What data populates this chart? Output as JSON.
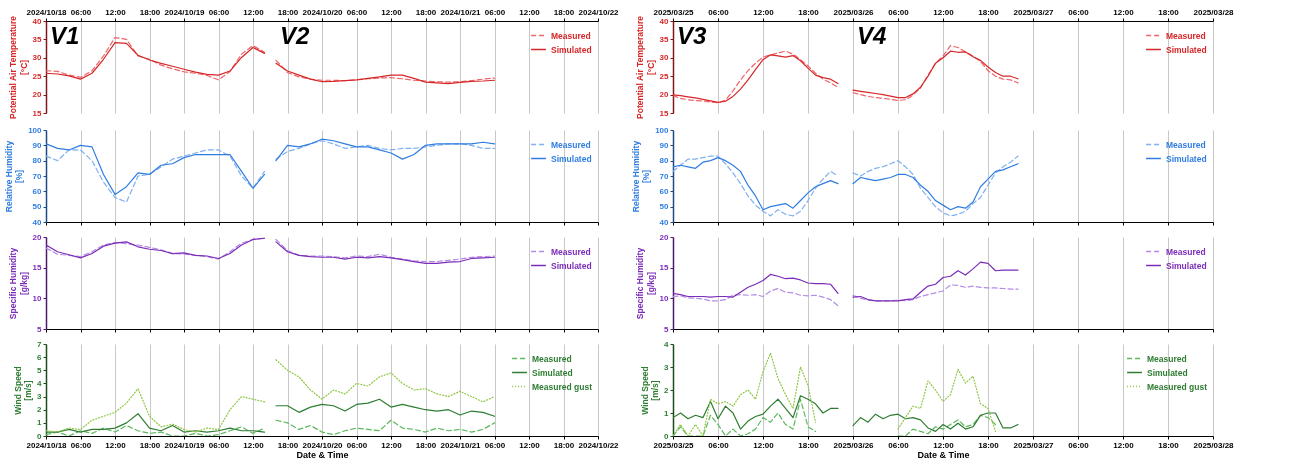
{
  "chart_data": [
    {
      "type": "line",
      "ylabel": "Potential Air Temperature\n[°C]",
      "grid": "x",
      "legend": "top right",
      "xlim": [
        "2024-10-18T00:00",
        "2024-10-22T00:00"
      ],
      "xticks": [
        {
          "value": "2024-10-18T00:00",
          "label": "2024/10/18"
        },
        {
          "value": "2024-10-18T06:00",
          "label": "06:00"
        },
        {
          "value": "2024-10-18T12:00",
          "label": "12:00"
        },
        {
          "value": "2024-10-18T18:00",
          "label": "18:00"
        },
        {
          "value": "2024-10-19T00:00",
          "label": "2024/10/19"
        },
        {
          "value": "2024-10-19T06:00",
          "label": "06:00"
        },
        {
          "value": "2024-10-19T12:00",
          "label": "12:00"
        },
        {
          "value": "2024-10-19T18:00",
          "label": "18:00"
        },
        {
          "value": "2024-10-20T00:00",
          "label": "2024/10/20"
        },
        {
          "value": "2024-10-20T06:00",
          "label": "06:00"
        },
        {
          "value": "2024-10-20T12:00",
          "label": "12:00"
        },
        {
          "value": "2024-10-20T18:00",
          "label": "18:00"
        },
        {
          "value": "2024-10-21T00:00",
          "label": "2024/10/21"
        },
        {
          "value": "2024-10-21T06:00",
          "label": "06:00"
        },
        {
          "value": "2024-10-21T12:00",
          "label": "12:00"
        },
        {
          "value": "2024-10-21T18:00",
          "label": "18:00"
        },
        {
          "value": "2024-10-22T00:00",
          "label": "2024/10/22"
        }
      ],
      "ylim": [
        15,
        40
      ],
      "yticks": [
        15,
        20,
        25,
        30,
        35,
        40
      ],
      "annotations": [
        "V1",
        "V2"
      ],
      "x": [
        "2024-10-18T00:00",
        "2024-10-18T02:00",
        "2024-10-18T04:00",
        "2024-10-18T06:00",
        "2024-10-18T08:00",
        "2024-10-18T10:00",
        "2024-10-18T12:00",
        "2024-10-18T14:00",
        "2024-10-18T16:00",
        "2024-10-18T18:00",
        "2024-10-18T20:00",
        "2024-10-18T22:00",
        "2024-10-19T00:00",
        "2024-10-19T02:00",
        "2024-10-19T04:00",
        "2024-10-19T06:00",
        "2024-10-19T08:00",
        "2024-10-19T10:00",
        "2024-10-19T12:00",
        "2024-10-19T14:00",
        "2024-10-19T15:00",
        "2024-10-19T16:00",
        "2024-10-19T18:00",
        "2024-10-19T20:00",
        "2024-10-19T22:00",
        "2024-10-20T00:00",
        "2024-10-20T02:00",
        "2024-10-20T04:00",
        "2024-10-20T06:00",
        "2024-10-20T08:00",
        "2024-10-20T10:00",
        "2024-10-20T12:00",
        "2024-10-20T14:00",
        "2024-10-20T16:00",
        "2024-10-20T18:00",
        "2024-10-20T20:00",
        "2024-10-20T22:00",
        "2024-10-21T00:00",
        "2024-10-21T02:00",
        "2024-10-21T04:00",
        "2024-10-21T06:00"
      ],
      "series": [
        {
          "name": "Measured",
          "color": "#f0646a",
          "line_style": "dashed",
          "values": [
            26.5,
            26.3,
            25.3,
            24.7,
            26.5,
            30.5,
            35.5,
            35,
            30.5,
            29.6,
            28,
            27,
            26.2,
            25.8,
            25.2,
            24,
            26.3,
            31,
            33.3,
            31.5,
            null,
            29.3,
            26,
            24.8,
            24.2,
            23.9,
            23.9,
            23.8,
            24,
            24.3,
            24.5,
            24.6,
            24.3,
            23.9,
            23.7,
            23.5,
            23.4,
            23.5,
            23.8,
            24.2,
            24.5
          ]
        },
        {
          "name": "Simulated",
          "color": "#d62728",
          "line_style": "solid",
          "values": [
            25.8,
            25.6,
            25.1,
            24.2,
            25.8,
            29.6,
            34.1,
            33.9,
            30.7,
            29.4,
            28.5,
            27.7,
            26.9,
            26.1,
            25.5,
            25.3,
            26.4,
            30.1,
            32.8,
            31.2,
            null,
            28.5,
            26.4,
            25.3,
            24.2,
            23.5,
            23.6,
            23.8,
            24.0,
            24.4,
            24.8,
            25.3,
            25.3,
            24.4,
            23.4,
            23.2,
            23.0,
            23.3,
            23.6,
            23.7,
            23.9
          ]
        }
      ]
    },
    {
      "type": "line",
      "ylabel": "Relative Humidity\n[%]",
      "grid": "x",
      "legend": "top right",
      "tick_labels": "y",
      "xlim": [
        "2024-10-18T00:00",
        "2024-10-22T00:00"
      ],
      "xticks": [
        "2024-10-18T00:00",
        "2024-10-18T06:00",
        "2024-10-18T12:00",
        "2024-10-18T18:00",
        "2024-10-19T00:00",
        "2024-10-19T06:00",
        "2024-10-19T12:00",
        "2024-10-19T18:00",
        "2024-10-20T00:00",
        "2024-10-20T06:00",
        "2024-10-20T12:00",
        "2024-10-20T18:00",
        "2024-10-21T00:00",
        "2024-10-21T06:00",
        "2024-10-21T12:00",
        "2024-10-21T18:00",
        "2024-10-22T00:00"
      ],
      "ylim": [
        40,
        100
      ],
      "yticks": [
        40,
        50,
        60,
        70,
        80,
        90,
        100
      ],
      "x": [
        "2024-10-18T00:00",
        "2024-10-18T02:00",
        "2024-10-18T04:00",
        "2024-10-18T06:00",
        "2024-10-18T08:00",
        "2024-10-18T10:00",
        "2024-10-18T12:00",
        "2024-10-18T14:00",
        "2024-10-18T16:00",
        "2024-10-18T18:00",
        "2024-10-18T20:00",
        "2024-10-18T22:00",
        "2024-10-19T00:00",
        "2024-10-19T02:00",
        "2024-10-19T04:00",
        "2024-10-19T06:00",
        "2024-10-19T08:00",
        "2024-10-19T10:00",
        "2024-10-19T12:00",
        "2024-10-19T14:00",
        "2024-10-19T15:00",
        "2024-10-19T16:00",
        "2024-10-19T18:00",
        "2024-10-19T20:00",
        "2024-10-19T22:00",
        "2024-10-20T00:00",
        "2024-10-20T02:00",
        "2024-10-20T04:00",
        "2024-10-20T06:00",
        "2024-10-20T08:00",
        "2024-10-20T10:00",
        "2024-10-20T12:00",
        "2024-10-20T14:00",
        "2024-10-20T16:00",
        "2024-10-20T18:00",
        "2024-10-20T20:00",
        "2024-10-20T22:00",
        "2024-10-21T00:00",
        "2024-10-21T02:00",
        "2024-10-21T04:00",
        "2024-10-21T06:00"
      ],
      "series": [
        {
          "name": "Measured",
          "color": "#7fb0f0",
          "line_style": "dashed",
          "values": [
            83,
            80,
            87,
            87,
            80,
            66,
            56,
            53,
            70,
            71,
            76,
            81,
            83,
            85,
            87,
            87,
            83,
            70,
            62,
            73,
            null,
            81,
            86,
            88,
            91,
            93,
            91,
            88,
            89,
            90,
            88,
            87,
            88,
            88,
            89,
            90,
            91,
            91,
            90,
            88,
            88
          ]
        },
        {
          "name": "Simulated",
          "color": "#2f7de1",
          "line_style": "solid",
          "values": [
            91,
            88,
            87,
            90,
            89,
            71,
            58,
            63,
            72,
            71,
            77,
            78,
            82,
            84,
            84,
            84,
            84,
            73,
            62,
            71,
            null,
            80,
            90,
            89,
            91,
            94,
            93,
            91,
            89,
            89,
            87,
            85,
            81,
            84,
            90,
            91,
            91,
            91,
            91,
            92,
            91
          ]
        }
      ]
    },
    {
      "type": "line",
      "ylabel": "Specific Humidity\n[g/kg]",
      "grid": "x",
      "legend": "top right",
      "tick_labels": "y",
      "xlim": [
        "2024-10-18T00:00",
        "2024-10-22T00:00"
      ],
      "xticks": [
        "2024-10-18T00:00",
        "2024-10-18T06:00",
        "2024-10-18T12:00",
        "2024-10-18T18:00",
        "2024-10-19T00:00",
        "2024-10-19T06:00",
        "2024-10-19T12:00",
        "2024-10-19T18:00",
        "2024-10-20T00:00",
        "2024-10-20T06:00",
        "2024-10-20T12:00",
        "2024-10-20T18:00",
        "2024-10-21T00:00",
        "2024-10-21T06:00",
        "2024-10-21T12:00",
        "2024-10-21T18:00",
        "2024-10-22T00:00"
      ],
      "ylim": [
        5,
        20
      ],
      "yticks": [
        5,
        10,
        15,
        20
      ],
      "x": [
        "2024-10-18T00:00",
        "2024-10-18T02:00",
        "2024-10-18T04:00",
        "2024-10-18T06:00",
        "2024-10-18T08:00",
        "2024-10-18T10:00",
        "2024-10-18T12:00",
        "2024-10-18T14:00",
        "2024-10-18T16:00",
        "2024-10-18T18:00",
        "2024-10-18T20:00",
        "2024-10-18T22:00",
        "2024-10-19T00:00",
        "2024-10-19T02:00",
        "2024-10-19T04:00",
        "2024-10-19T06:00",
        "2024-10-19T08:00",
        "2024-10-19T10:00",
        "2024-10-19T12:00",
        "2024-10-19T14:00",
        "2024-10-19T15:00",
        "2024-10-19T16:00",
        "2024-10-19T18:00",
        "2024-10-19T20:00",
        "2024-10-19T22:00",
        "2024-10-20T00:00",
        "2024-10-20T02:00",
        "2024-10-20T04:00",
        "2024-10-20T06:00",
        "2024-10-20T08:00",
        "2024-10-20T10:00",
        "2024-10-20T12:00",
        "2024-10-20T14:00",
        "2024-10-20T16:00",
        "2024-10-20T18:00",
        "2024-10-20T20:00",
        "2024-10-20T22:00",
        "2024-10-21T00:00",
        "2024-10-21T02:00",
        "2024-10-21T04:00",
        "2024-10-21T06:00"
      ],
      "series": [
        {
          "name": "Measured",
          "color": "#b48be6",
          "line_style": "dashed",
          "values": [
            18.2,
            17.2,
            17.0,
            16.8,
            17.6,
            18.7,
            19.1,
            18.9,
            18.7,
            18.3,
            17.9,
            17.3,
            17.2,
            17.0,
            16.8,
            16.4,
            17.6,
            19.0,
            19.6,
            19.8,
            null,
            19.6,
            17.8,
            17.0,
            16.9,
            16.9,
            16.8,
            16.6,
            16.9,
            16.8,
            17.2,
            16.7,
            16.4,
            16.1,
            16.0,
            16.0,
            16.2,
            16.4,
            16.7,
            16.8,
            16.9
          ]
        },
        {
          "name": "Simulated",
          "color": "#7b2cb8",
          "line_style": "solid",
          "values": [
            18.7,
            17.6,
            17.1,
            16.6,
            17.3,
            18.5,
            19.0,
            19.2,
            18.4,
            18.0,
            17.8,
            17.3,
            17.4,
            17.0,
            16.9,
            16.5,
            17.3,
            18.7,
            19.6,
            19.8,
            null,
            19.2,
            17.6,
            17.0,
            16.8,
            16.7,
            16.7,
            16.4,
            16.7,
            16.6,
            16.8,
            16.6,
            16.3,
            16.0,
            15.7,
            15.7,
            15.9,
            16.0,
            16.5,
            16.6,
            16.7
          ]
        }
      ]
    },
    {
      "type": "line",
      "ylabel": "Wind Speed\n[m/s]",
      "xlabel": "Date & Time",
      "grid": "x",
      "legend": "top right",
      "xlim": [
        "2024-10-18T00:00",
        "2024-10-22T00:00"
      ],
      "xticks": [
        {
          "value": "2024-10-18T00:00",
          "label": "2024/10/18"
        },
        {
          "value": "2024-10-18T06:00",
          "label": "06:00"
        },
        {
          "value": "2024-10-18T12:00",
          "label": "12:00"
        },
        {
          "value": "2024-10-18T18:00",
          "label": "18:00"
        },
        {
          "value": "2024-10-19T00:00",
          "label": "2024/10/19"
        },
        {
          "value": "2024-10-19T06:00",
          "label": "06:00"
        },
        {
          "value": "2024-10-19T12:00",
          "label": "12:00"
        },
        {
          "value": "2024-10-19T18:00",
          "label": "18:00"
        },
        {
          "value": "2024-10-20T00:00",
          "label": "2024/10/20"
        },
        {
          "value": "2024-10-20T06:00",
          "label": "06:00"
        },
        {
          "value": "2024-10-20T12:00",
          "label": "12:00"
        },
        {
          "value": "2024-10-20T18:00",
          "label": "18:00"
        },
        {
          "value": "2024-10-21T00:00",
          "label": "2024/10/21"
        },
        {
          "value": "2024-10-21T06:00",
          "label": "06:00"
        },
        {
          "value": "2024-10-21T12:00",
          "label": "12:00"
        },
        {
          "value": "2024-10-21T18:00",
          "label": "18:00"
        },
        {
          "value": "2024-10-22T00:00",
          "label": "2024/10/22"
        }
      ],
      "ylim": [
        0,
        7
      ],
      "yticks": [
        0,
        1,
        2,
        3,
        4,
        5,
        6,
        7
      ],
      "x": [
        "2024-10-18T00:00",
        "2024-10-18T02:00",
        "2024-10-18T04:00",
        "2024-10-18T06:00",
        "2024-10-18T08:00",
        "2024-10-18T10:00",
        "2024-10-18T12:00",
        "2024-10-18T14:00",
        "2024-10-18T16:00",
        "2024-10-18T18:00",
        "2024-10-18T20:00",
        "2024-10-18T22:00",
        "2024-10-19T00:00",
        "2024-10-19T02:00",
        "2024-10-19T04:00",
        "2024-10-19T06:00",
        "2024-10-19T08:00",
        "2024-10-19T10:00",
        "2024-10-19T12:00",
        "2024-10-19T14:00",
        "2024-10-19T15:00",
        "2024-10-19T16:00",
        "2024-10-19T18:00",
        "2024-10-19T20:00",
        "2024-10-19T22:00",
        "2024-10-20T00:00",
        "2024-10-20T02:00",
        "2024-10-20T04:00",
        "2024-10-20T06:00",
        "2024-10-20T08:00",
        "2024-10-20T10:00",
        "2024-10-20T12:00",
        "2024-10-20T14:00",
        "2024-10-20T16:00",
        "2024-10-20T18:00",
        "2024-10-20T20:00",
        "2024-10-20T22:00",
        "2024-10-21T00:00",
        "2024-10-21T02:00",
        "2024-10-21T04:00",
        "2024-10-21T06:00"
      ],
      "series": [
        {
          "name": "Measured",
          "color": "#5cb85c",
          "line_style": "dashed",
          "values": [
            0.1,
            0.3,
            0,
            0.4,
            0.2,
            0.6,
            0.3,
            0.8,
            0.4,
            0.2,
            0.3,
            0,
            0,
            0.2,
            0,
            0.1,
            0.4,
            0.7,
            0.2,
            0.6,
            null,
            1.2,
            1.0,
            0.5,
            0.8,
            0.3,
            0.1,
            0.4,
            0.6,
            0.5,
            0.4,
            1.2,
            0.6,
            0.5,
            0.3,
            0.6,
            0.4,
            0.5,
            0.3,
            0.5,
            1.0
          ]
        },
        {
          "name": "Simulated",
          "color": "#2e7d32",
          "line_style": "solid",
          "values": [
            0.3,
            0.3,
            0.5,
            0.3,
            0.5,
            0.5,
            0.6,
            1.0,
            1.7,
            0.6,
            0.4,
            0.8,
            0.3,
            0.4,
            0.3,
            0.4,
            0.6,
            0.4,
            0.4,
            0.3,
            null,
            2.3,
            2.3,
            1.8,
            2.2,
            2.4,
            2.3,
            1.9,
            2.4,
            2.5,
            2.8,
            2.2,
            2.4,
            2.2,
            2.0,
            1.9,
            2.0,
            1.6,
            1.9,
            1.8,
            1.5
          ]
        },
        {
          "name": "Measured gust",
          "color": "#8cc63f",
          "line_style": "dotted",
          "values": [
            0.4,
            0.3,
            0.6,
            0.5,
            1.2,
            1.5,
            1.8,
            2.5,
            3.6,
            1.5,
            0.7,
            0.9,
            0.5,
            0.3,
            0.6,
            0.5,
            2.0,
            3.0,
            2.8,
            2.6,
            null,
            5.8,
            5.0,
            4.5,
            3.5,
            2.8,
            3.5,
            3.2,
            4.0,
            3.8,
            4.5,
            4.8,
            4.0,
            3.5,
            3.6,
            3.2,
            3.0,
            3.4,
            3.0,
            2.6,
            3.0
          ]
        }
      ]
    },
    {
      "type": "line",
      "ylabel": "Potential Air Temperature\n[°C]",
      "grid": "x",
      "legend": "top right",
      "xlim": [
        "2025-03-25T00:00",
        "2025-03-28T00:00"
      ],
      "xticks": [
        {
          "value": "2025-03-25T00:00",
          "label": "2025/03/25"
        },
        {
          "value": "2025-03-25T06:00",
          "label": "06:00"
        },
        {
          "value": "2025-03-25T12:00",
          "label": "12:00"
        },
        {
          "value": "2025-03-25T18:00",
          "label": "18:00"
        },
        {
          "value": "2025-03-26T00:00",
          "label": "2025/03/26"
        },
        {
          "value": "2025-03-26T06:00",
          "label": "06:00"
        },
        {
          "value": "2025-03-26T12:00",
          "label": "12:00"
        },
        {
          "value": "2025-03-26T18:00",
          "label": "18:00"
        },
        {
          "value": "2025-03-27T00:00",
          "label": "2025/03/27"
        },
        {
          "value": "2025-03-27T06:00",
          "label": "06:00"
        },
        {
          "value": "2025-03-27T12:00",
          "label": "12:00"
        },
        {
          "value": "2025-03-27T18:00",
          "label": "18:00"
        },
        {
          "value": "2025-03-28T00:00",
          "label": "2025/03/28"
        }
      ],
      "ylim": [
        15,
        40
      ],
      "yticks": [
        15,
        20,
        25,
        30,
        35,
        40
      ],
      "annotations": [
        "V3",
        "V4"
      ],
      "x": [
        "2025-03-25T00:00",
        "2025-03-25T01:00",
        "2025-03-25T02:00",
        "2025-03-25T03:00",
        "2025-03-25T04:00",
        "2025-03-25T05:00",
        "2025-03-25T06:00",
        "2025-03-25T07:00",
        "2025-03-25T08:00",
        "2025-03-25T09:00",
        "2025-03-25T10:00",
        "2025-03-25T11:00",
        "2025-03-25T12:00",
        "2025-03-25T13:00",
        "2025-03-25T14:00",
        "2025-03-25T15:00",
        "2025-03-25T16:00",
        "2025-03-25T17:00",
        "2025-03-25T18:00",
        "2025-03-25T19:00",
        "2025-03-25T20:00",
        "2025-03-25T21:00",
        "2025-03-25T22:00",
        "2025-03-25T23:00",
        "2025-03-26T00:00",
        "2025-03-26T01:00",
        "2025-03-26T02:00",
        "2025-03-26T03:00",
        "2025-03-26T04:00",
        "2025-03-26T05:00",
        "2025-03-26T06:00",
        "2025-03-26T07:00",
        "2025-03-26T08:00",
        "2025-03-26T09:00",
        "2025-03-26T10:00",
        "2025-03-26T11:00",
        "2025-03-26T12:00",
        "2025-03-26T13:00",
        "2025-03-26T14:00",
        "2025-03-26T15:00",
        "2025-03-26T16:00",
        "2025-03-26T17:00",
        "2025-03-26T18:00",
        "2025-03-26T19:00",
        "2025-03-26T20:00",
        "2025-03-26T21:00",
        "2025-03-26T22:00"
      ],
      "series": [
        {
          "name": "Measured",
          "color": "#f0646a",
          "line_style": "dashed",
          "values": [
            19.7,
            19.0,
            18.6,
            18.4,
            18.3,
            18.0,
            17.8,
            18.5,
            21,
            24,
            26.5,
            28.5,
            30.2,
            30.8,
            31.3,
            31.8,
            31.0,
            29.5,
            27.8,
            25.8,
            24.2,
            23.2,
            22.0,
            null,
            20.5,
            20.0,
            19.5,
            19.2,
            19.0,
            18.7,
            18.4,
            18.6,
            19.8,
            21.8,
            25.3,
            28.5,
            30.5,
            33.3,
            32.8,
            31.6,
            30.5,
            29.0,
            26.5,
            25.0,
            24.2,
            24.0,
            23.2
          ]
        },
        {
          "name": "Simulated",
          "color": "#d62728",
          "line_style": "solid",
          "values": [
            19.9,
            19.7,
            19.4,
            19.1,
            18.7,
            18.3,
            17.9,
            18.2,
            19.5,
            21.5,
            24,
            26.8,
            29.5,
            30.8,
            30.5,
            30.2,
            30.6,
            29.2,
            27.2,
            25.3,
            24.6,
            24.2,
            23.0,
            null,
            21.2,
            20.9,
            20.6,
            20.3,
            20.0,
            19.6,
            19.2,
            19.2,
            20.2,
            22,
            25,
            28.5,
            30,
            31.8,
            31.5,
            31.6,
            30.3,
            29.3,
            27.5,
            26,
            25,
            25,
            24.3
          ]
        }
      ]
    },
    {
      "type": "line",
      "ylabel": "Relative Humidity\n[%]",
      "grid": "x",
      "legend": "top right",
      "tick_labels": "y",
      "xlim": [
        "2025-03-25T00:00",
        "2025-03-28T00:00"
      ],
      "xticks": [
        "2025-03-25T00:00",
        "2025-03-25T06:00",
        "2025-03-25T12:00",
        "2025-03-25T18:00",
        "2025-03-26T00:00",
        "2025-03-26T06:00",
        "2025-03-26T12:00",
        "2025-03-26T18:00",
        "2025-03-27T00:00",
        "2025-03-27T06:00",
        "2025-03-27T12:00",
        "2025-03-27T18:00",
        "2025-03-28T00:00"
      ],
      "ylim": [
        40,
        100
      ],
      "yticks": [
        40,
        50,
        60,
        70,
        80,
        90,
        100
      ],
      "x": [
        "2025-03-25T00:00",
        "2025-03-25T01:00",
        "2025-03-25T02:00",
        "2025-03-25T03:00",
        "2025-03-25T04:00",
        "2025-03-25T05:00",
        "2025-03-25T06:00",
        "2025-03-25T07:00",
        "2025-03-25T08:00",
        "2025-03-25T09:00",
        "2025-03-25T10:00",
        "2025-03-25T11:00",
        "2025-03-25T12:00",
        "2025-03-25T13:00",
        "2025-03-25T14:00",
        "2025-03-25T15:00",
        "2025-03-25T16:00",
        "2025-03-25T17:00",
        "2025-03-25T18:00",
        "2025-03-25T19:00",
        "2025-03-25T20:00",
        "2025-03-25T21:00",
        "2025-03-25T22:00",
        "2025-03-25T23:00",
        "2025-03-26T00:00",
        "2025-03-26T01:00",
        "2025-03-26T02:00",
        "2025-03-26T03:00",
        "2025-03-26T04:00",
        "2025-03-26T05:00",
        "2025-03-26T06:00",
        "2025-03-26T07:00",
        "2025-03-26T08:00",
        "2025-03-26T09:00",
        "2025-03-26T10:00",
        "2025-03-26T11:00",
        "2025-03-26T12:00",
        "2025-03-26T13:00",
        "2025-03-26T14:00",
        "2025-03-26T15:00",
        "2025-03-26T16:00",
        "2025-03-26T17:00",
        "2025-03-26T18:00",
        "2025-03-26T19:00",
        "2025-03-26T20:00",
        "2025-03-26T21:00",
        "2025-03-26T22:00"
      ],
      "series": [
        {
          "name": "Measured",
          "color": "#7fb0f0",
          "line_style": "dashed",
          "values": [
            73,
            77,
            81,
            81,
            82,
            83,
            83,
            78,
            72,
            65,
            57,
            51,
            47,
            44,
            48,
            45,
            44,
            47,
            54,
            62,
            68,
            73,
            70,
            null,
            72,
            70,
            73,
            75,
            76,
            78,
            80,
            76,
            71,
            62,
            56,
            50,
            46,
            44,
            45,
            47,
            52,
            56,
            64,
            72,
            76,
            79,
            83
          ]
        },
        {
          "name": "Simulated",
          "color": "#2f7de1",
          "line_style": "solid",
          "values": [
            76,
            77,
            76,
            75,
            79,
            80,
            82,
            80,
            77,
            73,
            64,
            57,
            48,
            50,
            51,
            52,
            49,
            54,
            59,
            63,
            65,
            67,
            65,
            null,
            65,
            69,
            68,
            67,
            68,
            69,
            71,
            71,
            69,
            64,
            60,
            54,
            51,
            48,
            50,
            49,
            53,
            63,
            68,
            73,
            74,
            76,
            78
          ]
        }
      ]
    },
    {
      "type": "line",
      "ylabel": "Specific Humidity\n[g/kg]",
      "grid": "x",
      "legend": "top right",
      "tick_labels": "y",
      "xlim": [
        "2025-03-25T00:00",
        "2025-03-28T00:00"
      ],
      "xticks": [
        "2025-03-25T00:00",
        "2025-03-25T06:00",
        "2025-03-25T12:00",
        "2025-03-25T18:00",
        "2025-03-26T00:00",
        "2025-03-26T06:00",
        "2025-03-26T12:00",
        "2025-03-26T18:00",
        "2025-03-27T00:00",
        "2025-03-27T06:00",
        "2025-03-27T12:00",
        "2025-03-27T18:00",
        "2025-03-28T00:00"
      ],
      "ylim": [
        5,
        20
      ],
      "yticks": [
        5,
        10,
        15,
        20
      ],
      "x": [
        "2025-03-25T00:00",
        "2025-03-25T01:00",
        "2025-03-25T02:00",
        "2025-03-25T03:00",
        "2025-03-25T04:00",
        "2025-03-25T05:00",
        "2025-03-25T06:00",
        "2025-03-25T07:00",
        "2025-03-25T08:00",
        "2025-03-25T09:00",
        "2025-03-25T10:00",
        "2025-03-25T11:00",
        "2025-03-25T12:00",
        "2025-03-25T13:00",
        "2025-03-25T14:00",
        "2025-03-25T15:00",
        "2025-03-25T16:00",
        "2025-03-25T17:00",
        "2025-03-25T18:00",
        "2025-03-25T19:00",
        "2025-03-25T20:00",
        "2025-03-25T21:00",
        "2025-03-25T22:00",
        "2025-03-25T23:00",
        "2025-03-26T00:00",
        "2025-03-26T01:00",
        "2025-03-26T02:00",
        "2025-03-26T03:00",
        "2025-03-26T04:00",
        "2025-03-26T05:00",
        "2025-03-26T06:00",
        "2025-03-26T07:00",
        "2025-03-26T08:00",
        "2025-03-26T09:00",
        "2025-03-26T10:00",
        "2025-03-26T11:00",
        "2025-03-26T12:00",
        "2025-03-26T13:00",
        "2025-03-26T14:00",
        "2025-03-26T15:00",
        "2025-03-26T16:00",
        "2025-03-26T17:00",
        "2025-03-26T18:00",
        "2025-03-26T19:00",
        "2025-03-26T20:00",
        "2025-03-26T21:00",
        "2025-03-26T22:00"
      ],
      "series": [
        {
          "name": "Measured",
          "color": "#b48be6",
          "line_style": "dashed",
          "values": [
            10.3,
            10.4,
            10.1,
            10.0,
            9.9,
            9.6,
            9.6,
            9.8,
            10.5,
            10.6,
            10.5,
            10.6,
            10.3,
            11.2,
            11.6,
            11.0,
            10.9,
            10.5,
            10.4,
            10.5,
            10.2,
            9.8,
            8.8,
            null,
            10.5,
            10.0,
            9.7,
            9.6,
            9.6,
            9.6,
            9.7,
            9.6,
            9.8,
            10.3,
            10.6,
            10.9,
            11.2,
            12.2,
            12.1,
            11.8,
            12.0,
            11.8,
            11.7,
            11.7,
            11.6,
            11.5,
            11.5
          ]
        },
        {
          "name": "Simulated",
          "color": "#7b2cb8",
          "line_style": "solid",
          "values": [
            10.8,
            10.6,
            10.3,
            10.3,
            10.3,
            10.2,
            10.3,
            10.3,
            10.2,
            11.0,
            11.8,
            12.3,
            12.9,
            13.9,
            13.6,
            13.2,
            13.3,
            13.0,
            12.5,
            12.4,
            12.4,
            12.3,
            10.8,
            null,
            10.2,
            10.3,
            9.8,
            9.6,
            9.6,
            9.6,
            9.6,
            9.8,
            9.9,
            11.0,
            12.0,
            12.3,
            13.4,
            13.6,
            14.5,
            13.8,
            14.8,
            15.9,
            15.7,
            14.5,
            14.6,
            14.6,
            14.6
          ]
        }
      ]
    },
    {
      "type": "line",
      "ylabel": "Wind Speed\n[m/s]",
      "xlabel": "Date & Time",
      "grid": "x",
      "legend": "top right",
      "xlim": [
        "2025-03-25T00:00",
        "2025-03-28T00:00"
      ],
      "xticks": [
        {
          "value": "2025-03-25T00:00",
          "label": "2025/03/25"
        },
        {
          "value": "2025-03-25T06:00",
          "label": "06:00"
        },
        {
          "value": "2025-03-25T12:00",
          "label": "12:00"
        },
        {
          "value": "2025-03-25T18:00",
          "label": "18:00"
        },
        {
          "value": "2025-03-26T00:00",
          "label": "2025/03/26"
        },
        {
          "value": "2025-03-26T06:00",
          "label": "06:00"
        },
        {
          "value": "2025-03-26T12:00",
          "label": "12:00"
        },
        {
          "value": "2025-03-26T18:00",
          "label": "18:00"
        },
        {
          "value": "2025-03-27T00:00",
          "label": "2025/03/27"
        },
        {
          "value": "2025-03-27T06:00",
          "label": "06:00"
        },
        {
          "value": "2025-03-27T12:00",
          "label": "12:00"
        },
        {
          "value": "2025-03-27T18:00",
          "label": "18:00"
        },
        {
          "value": "2025-03-28T00:00",
          "label": "2025/03/28"
        }
      ],
      "ylim": [
        0,
        4
      ],
      "yticks": [
        0,
        1,
        2,
        3,
        4
      ],
      "x": [
        "2025-03-25T00:00",
        "2025-03-25T01:00",
        "2025-03-25T02:00",
        "2025-03-25T03:00",
        "2025-03-25T04:00",
        "2025-03-25T05:00",
        "2025-03-25T06:00",
        "2025-03-25T07:00",
        "2025-03-25T08:00",
        "2025-03-25T09:00",
        "2025-03-25T10:00",
        "2025-03-25T11:00",
        "2025-03-25T12:00",
        "2025-03-25T13:00",
        "2025-03-25T14:00",
        "2025-03-25T15:00",
        "2025-03-25T16:00",
        "2025-03-25T17:00",
        "2025-03-25T18:00",
        "2025-03-25T19:00",
        "2025-03-25T20:00",
        "2025-03-25T21:00",
        "2025-03-25T22:00",
        "2025-03-25T23:00",
        "2025-03-26T00:00",
        "2025-03-26T01:00",
        "2025-03-26T02:00",
        "2025-03-26T03:00",
        "2025-03-26T04:00",
        "2025-03-26T05:00",
        "2025-03-26T06:00",
        "2025-03-26T07:00",
        "2025-03-26T08:00",
        "2025-03-26T09:00",
        "2025-03-26T10:00",
        "2025-03-26T11:00",
        "2025-03-26T12:00",
        "2025-03-26T13:00",
        "2025-03-26T14:00",
        "2025-03-26T15:00",
        "2025-03-26T16:00",
        "2025-03-26T17:00",
        "2025-03-26T18:00",
        "2025-03-26T19:00",
        "2025-03-26T20:00",
        "2025-03-26T21:00",
        "2025-03-26T22:00"
      ],
      "series": [
        {
          "name": "Measured",
          "color": "#5cb85c",
          "line_style": "dashed",
          "values": [
            0,
            0.4,
            0,
            0,
            0,
            0.9,
            0.5,
            0,
            0.3,
            0,
            0.1,
            0.3,
            0.8,
            0.6,
            1.0,
            0.5,
            0.3,
            1.6,
            0.4,
            0.2,
            null,
            null,
            null,
            null,
            null,
            null,
            null,
            null,
            null,
            null,
            0,
            0,
            0.3,
            0.2,
            0.1,
            0.4,
            0.3,
            0.5,
            0.7,
            0.4,
            0.5,
            0.9,
            0.8,
            0.5,
            null,
            null,
            null
          ]
        },
        {
          "name": "Simulated",
          "color": "#2e7d32",
          "line_style": "solid",
          "values": [
            0.8,
            1.0,
            0.75,
            0.9,
            0.8,
            1.5,
            0.75,
            1.3,
            1.0,
            0.3,
            0.65,
            0.85,
            0.95,
            1.3,
            1.6,
            1.2,
            0.8,
            1.75,
            1.6,
            1.4,
            1.0,
            1.2,
            1.2,
            null,
            0.45,
            0.8,
            0.6,
            0.95,
            0.75,
            0.9,
            0.95,
            0.75,
            0.8,
            0.7,
            0.35,
            0.2,
            0.5,
            0.3,
            0.55,
            0.3,
            0.4,
            0.9,
            1.0,
            1.0,
            0.35,
            0.35,
            0.5
          ]
        },
        {
          "name": "Measured gust",
          "color": "#8cc63f",
          "line_style": "dotted",
          "values": [
            0,
            0.5,
            0,
            0.5,
            0,
            1.6,
            1.4,
            1.5,
            1.3,
            1.8,
            2.0,
            1.6,
            2.8,
            3.6,
            2.5,
            1.8,
            1.2,
            3.0,
            2.2,
            0.6,
            null,
            null,
            null,
            null,
            null,
            null,
            null,
            null,
            null,
            null,
            0.3,
            0.8,
            1.3,
            1.2,
            2.4,
            2.0,
            1.5,
            1.8,
            2.9,
            2.3,
            2.6,
            1.4,
            1.2,
            0.2,
            null,
            null,
            null
          ]
        }
      ]
    }
  ]
}
